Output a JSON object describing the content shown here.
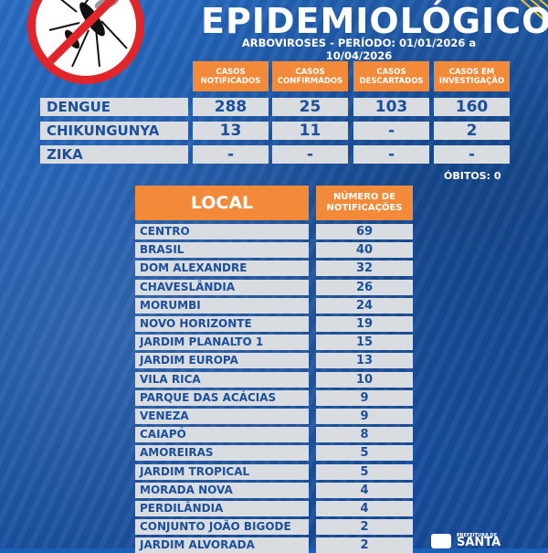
{
  "header": {
    "title": "EPIDEMIOLÓGICO",
    "subtitle": "ARBOVIROSES - PERÍODO: 01/01/2026 a 10/04/2026"
  },
  "summary": {
    "columns": [
      "CASOS NOTIFICADOS",
      "CASOS CONFIRMADOS",
      "CASOS DESCARTADOS",
      "CASOS EM INVESTIGAÇÃO"
    ],
    "rows": [
      {
        "name": "DENGUE",
        "values": [
          "288",
          "25",
          "103",
          "160"
        ]
      },
      {
        "name": "CHIKUNGUNYA",
        "values": [
          "13",
          "11",
          "-",
          "2"
        ]
      },
      {
        "name": "ZIKA",
        "values": [
          "-",
          "-",
          "-",
          "-"
        ]
      }
    ],
    "obitos": "ÓBITOS: 0"
  },
  "local_table": {
    "header_local": "LOCAL",
    "header_num": "NÚMERO DE NOTIFICAÇÕES",
    "rows": [
      {
        "local": "CENTRO",
        "num": "69"
      },
      {
        "local": "BRASIL",
        "num": "40"
      },
      {
        "local": "DOM ALEXANDRE",
        "num": "32"
      },
      {
        "local": "CHAVESLÂNDIA",
        "num": "26"
      },
      {
        "local": "MORUMBI",
        "num": "24"
      },
      {
        "local": "NOVO HORIZONTE",
        "num": "19"
      },
      {
        "local": "JARDIM PLANALTO 1",
        "num": "15"
      },
      {
        "local": "JARDIM EUROPA",
        "num": "13"
      },
      {
        "local": "VILA RICA",
        "num": "10"
      },
      {
        "local": "PARQUE DAS ACÁCIAS",
        "num": "9"
      },
      {
        "local": "VENEZA",
        "num": "9"
      },
      {
        "local": "CAIAPÓ",
        "num": "8"
      },
      {
        "local": "AMOREIRAS",
        "num": "5"
      },
      {
        "local": "JARDIM TROPICAL",
        "num": "5"
      },
      {
        "local": "MORADA NOVA",
        "num": "4"
      },
      {
        "local": "PERDILÂNDIA",
        "num": "4"
      },
      {
        "local": "CONJUNTO JOÃO BIGODE",
        "num": "2"
      },
      {
        "local": "JARDIM ALVORADA",
        "num": "2"
      }
    ]
  },
  "footer": {
    "prefeitura_small": "PREFEITURA DE",
    "prefeitura_big": "SANTA"
  },
  "icons": [
    "no-mosquito-icon",
    "prefeitura-logo-icon"
  ],
  "colors": {
    "background": "#1c5fb8",
    "header_orange": "#f28a3a",
    "cell_gray": "#d9dde2",
    "text_blue": "#1b4f9c",
    "stop_red": "#e0262b"
  }
}
